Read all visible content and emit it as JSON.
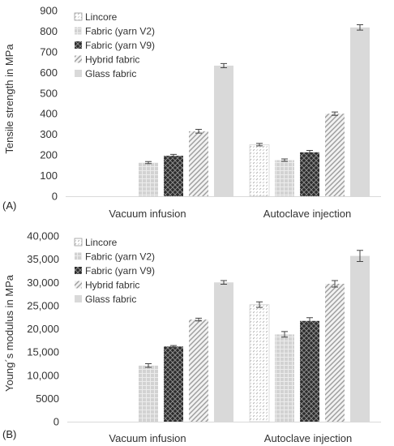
{
  "chart_data": [
    {
      "panel_label": "(A)",
      "type": "bar",
      "ylabel": "Tensile strength in MPa",
      "ylim": [
        0,
        900
      ],
      "yticks": [
        "0",
        "100",
        "200",
        "300",
        "400",
        "500",
        "600",
        "700",
        "800",
        "900"
      ],
      "categories": [
        "Vacuum infusion",
        "Autoclave injection"
      ],
      "series": [
        {
          "name": "Lincore",
          "values": [
            null,
            250
          ],
          "errors": [
            null,
            6
          ],
          "pattern": "lincore"
        },
        {
          "name": "Fabric (yarn V2)",
          "values": [
            163,
            175
          ],
          "errors": [
            5,
            6
          ],
          "pattern": "grid"
        },
        {
          "name": "Fabric (yarn V9)",
          "values": [
            196,
            213
          ],
          "errors": [
            7,
            9
          ],
          "pattern": "check"
        },
        {
          "name": "Hybrid fabric",
          "values": [
            315,
            400
          ],
          "errors": [
            9,
            8
          ],
          "pattern": "diag"
        },
        {
          "name": "Glass fabric",
          "values": [
            633,
            818
          ],
          "errors": [
            10,
            13
          ],
          "pattern": "solid"
        }
      ],
      "legend_position": "top-left",
      "grid": false
    },
    {
      "panel_label": "(B)",
      "type": "bar",
      "ylabel": "Young´s modulus in MPa",
      "ylim": [
        0,
        40000
      ],
      "yticks": [
        "0",
        "5000",
        "10,000",
        "15,000",
        "20,000",
        "25,000",
        "30,000",
        "35,000",
        "40,000"
      ],
      "categories": [
        "Vacuum infusion",
        "Autoclave injection"
      ],
      "series": [
        {
          "name": "Lincore",
          "values": [
            null,
            25200
          ],
          "errors": [
            null,
            600
          ],
          "pattern": "lincore"
        },
        {
          "name": "Fabric (yarn V2)",
          "values": [
            12100,
            18800
          ],
          "errors": [
            400,
            600
          ],
          "pattern": "grid"
        },
        {
          "name": "Fabric (yarn V9)",
          "values": [
            16200,
            21700
          ],
          "errors": [
            200,
            700
          ],
          "pattern": "check"
        },
        {
          "name": "Hybrid fabric",
          "values": [
            22000,
            29700
          ],
          "errors": [
            300,
            700
          ],
          "pattern": "diag"
        },
        {
          "name": "Glass fabric",
          "values": [
            30000,
            35700
          ],
          "errors": [
            400,
            1200
          ],
          "pattern": "solid"
        }
      ],
      "legend_position": "top-left",
      "grid": false
    }
  ]
}
